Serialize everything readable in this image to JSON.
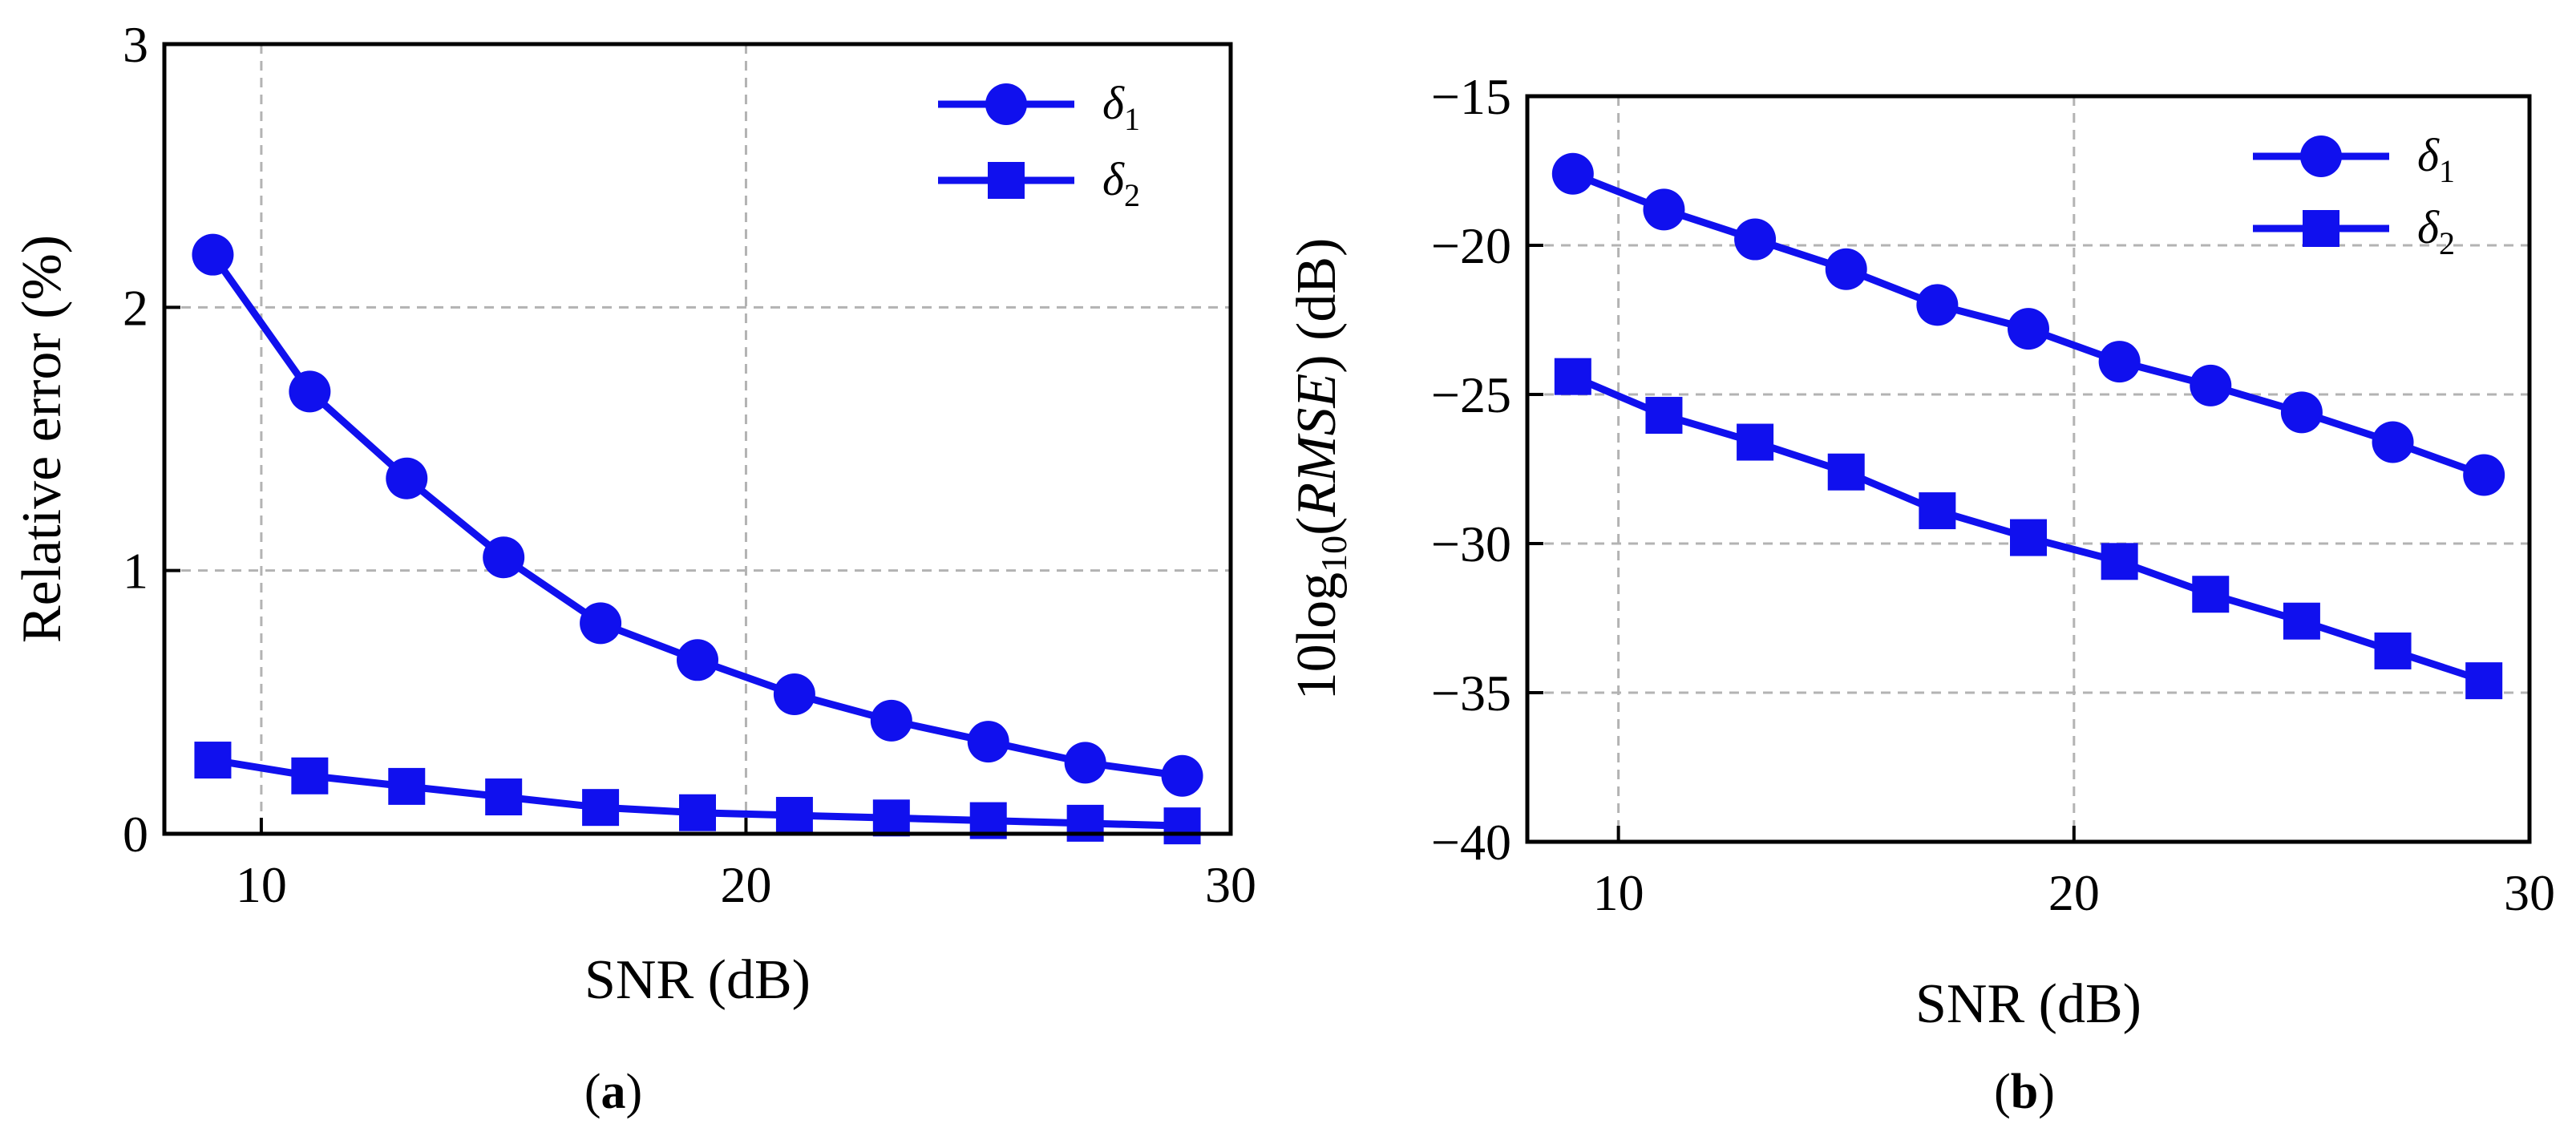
{
  "colors": {
    "series": "#1010ee",
    "grid": "#b3b3b3",
    "axis": "#000000"
  },
  "chart_data": [
    {
      "type": "line",
      "panel": "(a)",
      "panel_letter": "a",
      "xlabel": "SNR (dB)",
      "ylabel": "Relative error (%)",
      "xlim": [
        8,
        30
      ],
      "ylim": [
        0,
        3
      ],
      "xticks": [
        10,
        20,
        30
      ],
      "yticks": [
        0,
        1,
        2,
        3
      ],
      "xticklabels": [
        "10",
        "20",
        "30"
      ],
      "yticklabels": [
        "0",
        "1",
        "2",
        "3"
      ],
      "grid": true,
      "legend_location": "top-right",
      "x": [
        9,
        11,
        13,
        15,
        17,
        19,
        21,
        23,
        25,
        27,
        29
      ],
      "series": [
        {
          "name": "δ1",
          "symbol": "δ",
          "subscript": "1",
          "marker": "circle",
          "values": [
            2.2,
            1.68,
            1.35,
            1.05,
            0.8,
            0.66,
            0.53,
            0.43,
            0.35,
            0.27,
            0.22
          ]
        },
        {
          "name": "δ2",
          "symbol": "δ",
          "subscript": "2",
          "marker": "square",
          "values": [
            0.28,
            0.22,
            0.18,
            0.14,
            0.1,
            0.08,
            0.07,
            0.06,
            0.05,
            0.04,
            0.03
          ]
        }
      ]
    },
    {
      "type": "line",
      "panel": "(b)",
      "panel_letter": "b",
      "xlabel": "SNR (dB)",
      "ylabel": "10log10(RMSE) (dB)",
      "ylabel_parts": {
        "prefix": "10log",
        "sub": "10",
        "open": "(",
        "var": "RMSE",
        "close": ") (dB)"
      },
      "xlim": [
        8,
        30
      ],
      "ylim": [
        -40,
        -15
      ],
      "xticks": [
        10,
        20,
        30
      ],
      "yticks": [
        -40,
        -35,
        -30,
        -25,
        -20,
        -15
      ],
      "xticklabels": [
        "10",
        "20",
        "30"
      ],
      "yticklabels": [
        "−40",
        "−35",
        "−30",
        "−25",
        "−20",
        "−15"
      ],
      "grid": true,
      "legend_location": "top-right",
      "x": [
        9,
        11,
        13,
        15,
        17,
        19,
        21,
        23,
        25,
        27,
        29
      ],
      "series": [
        {
          "name": "δ1",
          "symbol": "δ",
          "subscript": "1",
          "marker": "circle",
          "values": [
            -17.6,
            -18.8,
            -19.8,
            -20.8,
            -22.0,
            -22.8,
            -23.9,
            -24.7,
            -25.6,
            -26.6,
            -27.7
          ]
        },
        {
          "name": "δ2",
          "symbol": "δ",
          "subscript": "2",
          "marker": "square",
          "values": [
            -24.4,
            -25.7,
            -26.6,
            -27.6,
            -28.9,
            -29.8,
            -30.6,
            -31.7,
            -32.6,
            -33.6,
            -34.6
          ]
        }
      ]
    }
  ]
}
